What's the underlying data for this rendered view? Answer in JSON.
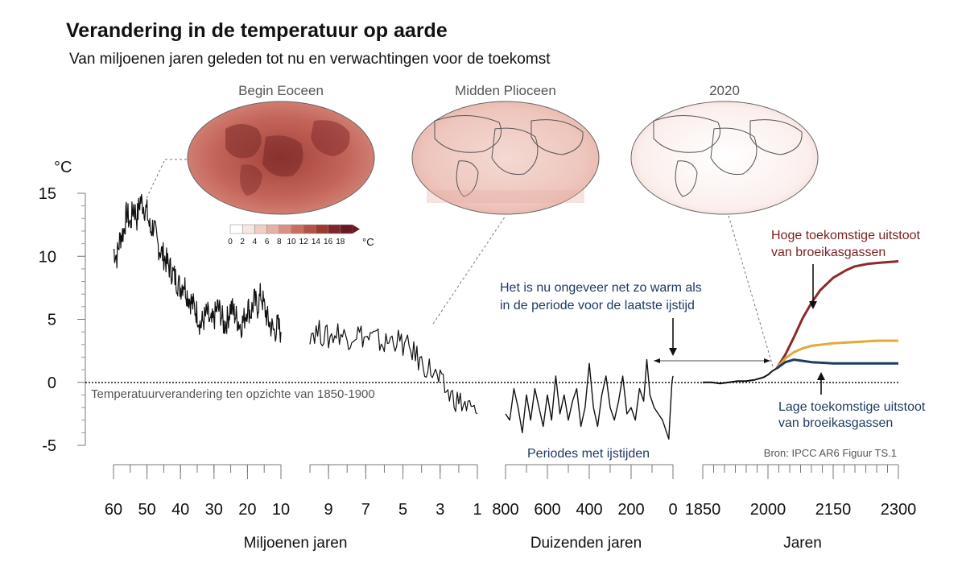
{
  "chart_data": {
    "type": "line",
    "title": "Verandering in de temperatuur op aarde",
    "subtitle": "Van miljoenen jaren geleden tot nu en verwachtingen voor de toekomst",
    "y_unit": "°C",
    "ylim": [
      -5,
      15
    ],
    "y_ticks": [
      "15",
      "10",
      "5",
      "0",
      "-5"
    ],
    "reference_line_label": "Temperatuurverandering ten opzichte  van 1850-1900",
    "source": "Bron: IPCC AR6 Figuur TS.1",
    "maps": {
      "labels": [
        "Begin Eoceen",
        "Midden Plioceen",
        "2020"
      ],
      "colorbar_ticks": [
        "0",
        "2",
        "4",
        "6",
        "8",
        "10",
        "12",
        "14",
        "16",
        "18"
      ],
      "colorbar_unit": "°C",
      "colorbar_colors": [
        "#ffffff",
        "#f8e6e3",
        "#f0cdc6",
        "#e6b0a6",
        "#d98f83",
        "#c96f62",
        "#b55246",
        "#9c3a31",
        "#80262a",
        "#6b1825"
      ]
    },
    "panels": [
      {
        "xlabel": "Miljoenen jaren",
        "x_ticks": [
          "60",
          "50",
          "40",
          "30",
          "20",
          "10"
        ],
        "series": {
          "x": [
            60,
            59,
            58,
            57,
            56,
            55,
            54,
            53,
            52,
            51,
            50,
            49,
            48,
            47,
            46,
            45,
            44,
            43,
            42,
            41,
            40,
            39,
            38,
            37,
            36,
            35,
            34,
            33,
            32,
            31,
            30,
            29,
            28,
            27,
            26,
            25,
            24,
            23,
            22,
            21,
            20,
            19,
            18,
            17,
            16,
            15,
            14,
            13,
            12,
            11,
            10
          ],
          "y": [
            10.5,
            10,
            11.5,
            12,
            13.5,
            12.5,
            14,
            13,
            14.5,
            14,
            13.5,
            12,
            12.5,
            11,
            10.5,
            10,
            9.5,
            9,
            8.5,
            8,
            7.5,
            8,
            7,
            6.5,
            6,
            5.5,
            4.5,
            5,
            5.5,
            4.5,
            5,
            6,
            5.5,
            4.5,
            5,
            6,
            5.5,
            5,
            4.5,
            5,
            6,
            5.5,
            6.5,
            6,
            7,
            6,
            5,
            4.5,
            4,
            4.5,
            4
          ]
        }
      },
      {
        "xlabel": "",
        "x_ticks": [
          "9",
          "7",
          "5",
          "3",
          "1"
        ],
        "series": {
          "x": [
            10,
            9.5,
            9,
            8.5,
            8,
            7.5,
            7,
            6.5,
            6,
            5.5,
            5,
            4.5,
            4,
            3.5,
            3,
            2.5,
            2,
            1.5,
            1
          ],
          "y": [
            4,
            4,
            3.5,
            4,
            3.5,
            4,
            3.5,
            3.5,
            3,
            3.5,
            3,
            2.5,
            1.5,
            1,
            0,
            -1,
            -1.5,
            -2,
            -2.5
          ]
        }
      },
      {
        "xlabel": "Duizenden jaren",
        "x_ticks": [
          "800",
          "600",
          "400",
          "200",
          "0"
        ],
        "annotation": "Periodes met ijstijden",
        "series": {
          "x": [
            800,
            780,
            760,
            740,
            720,
            700,
            680,
            660,
            640,
            620,
            600,
            580,
            560,
            540,
            520,
            500,
            480,
            460,
            440,
            420,
            400,
            380,
            360,
            340,
            320,
            300,
            280,
            260,
            240,
            220,
            200,
            180,
            160,
            140,
            125,
            110,
            90,
            70,
            50,
            30,
            20,
            12,
            5,
            0
          ],
          "y": [
            -2.5,
            -3,
            -0.5,
            -2,
            -4,
            -1,
            -3,
            -0.5,
            -2,
            -3.5,
            -1,
            -3,
            0.5,
            -2.5,
            -1,
            -3,
            -1.5,
            -0.5,
            -3.5,
            -2,
            1.5,
            -2,
            -3.5,
            -1,
            0.5,
            -2,
            -3,
            -1.5,
            0.5,
            -2.5,
            -2,
            -3,
            -0.5,
            -1.5,
            1.8,
            -1,
            -2,
            -2.5,
            -3,
            -4,
            -4.5,
            -2,
            0,
            0.5
          ]
        }
      },
      {
        "xlabel": "Jaren",
        "x_ticks": [
          "1850",
          "2000",
          "2150",
          "2300"
        ],
        "annotation_now": "Het is nu ongeveer net zo warm als in de periode voor de laatste ijstijd",
        "annotation_high": "Hoge toekomstige uitstoot van broeikasgassen",
        "annotation_low": "Lage toekomstige uitstoot van broeikasgassen",
        "series": [
          {
            "style": "observed",
            "color": "#111111",
            "x": [
              1850,
              1870,
              1890,
              1910,
              1930,
              1950,
              1970,
              1990,
              2000,
              2010,
              2020
            ],
            "y": [
              0,
              0,
              -0.1,
              0,
              0.1,
              0.1,
              0.2,
              0.4,
              0.6,
              0.9,
              1.1
            ]
          },
          {
            "style": "high",
            "color": "#8b2a2a",
            "x": [
              2020,
              2040,
              2060,
              2080,
              2100,
              2120,
              2150,
              2180,
              2200,
              2230,
              2260,
              2300
            ],
            "y": [
              1.1,
              2.2,
              3.6,
              5.1,
              6.3,
              7.3,
              8.3,
              8.9,
              9.2,
              9.4,
              9.5,
              9.6
            ]
          },
          {
            "style": "medium",
            "color": "#e3a93a",
            "x": [
              2020,
              2040,
              2060,
              2080,
              2100,
              2150,
              2200,
              2250,
              2300
            ],
            "y": [
              1.1,
              1.9,
              2.4,
              2.7,
              2.9,
              3.1,
              3.2,
              3.3,
              3.3
            ]
          },
          {
            "style": "low",
            "color": "#1f3a63",
            "x": [
              2020,
              2040,
              2060,
              2080,
              2100,
              2150,
              2200,
              2250,
              2300
            ],
            "y": [
              1.1,
              1.6,
              1.8,
              1.7,
              1.6,
              1.5,
              1.5,
              1.5,
              1.5
            ]
          }
        ]
      }
    ]
  }
}
